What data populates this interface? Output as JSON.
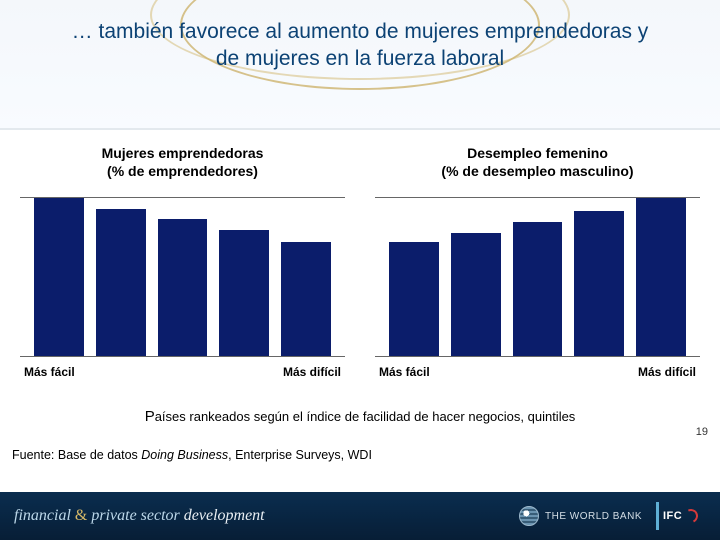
{
  "title": "… también favorece al aumento de mujeres emprendedoras  y de mujeres en la fuerza laboral",
  "chart_left": {
    "type": "bar",
    "subtitle_line1": "Mujeres emprendedoras",
    "subtitle_line2": "(% de emprendedores)",
    "values": [
      100,
      93,
      87,
      80,
      72
    ],
    "bar_color": "#0b1d6b",
    "background_color": "#ffffff",
    "axis_line_color": "#666666",
    "ylim": [
      0,
      100
    ],
    "label_left": "Más fácil",
    "label_right": "Más difícil",
    "label_fontsize": 12,
    "bar_width": 0.75
  },
  "chart_right": {
    "type": "bar",
    "subtitle_line1": "Desempleo femenino",
    "subtitle_line2": "(% de desempleo masculino)",
    "values": [
      72,
      78,
      85,
      92,
      100
    ],
    "bar_color": "#0b1d6b",
    "background_color": "#ffffff",
    "axis_line_color": "#666666",
    "ylim": [
      0,
      100
    ],
    "label_left": "Más fácil",
    "label_right": "Más difícil",
    "label_fontsize": 12,
    "bar_width": 0.75
  },
  "caption_prefix": "P",
  "caption_rest": "aíses rankeados según el índice de facilidad de hacer negocios, quintiles",
  "source_prefix": "Fuente: Base de datos ",
  "source_italic": "Doing Business",
  "source_suffix": ", Enterprise Surveys, WDI",
  "page_number": "19",
  "footer": {
    "brand_a": "financial ",
    "brand_amp": "&",
    "brand_b": " private sector ",
    "brand_c": "development",
    "wb_label": "THE WORLD BANK",
    "ifc_label": "IFC"
  },
  "colors": {
    "title_color": "#0c4274",
    "gold": "#c7aa5a",
    "footer_bg_top": "#0a2d4f",
    "footer_bg_bottom": "#071e36"
  }
}
